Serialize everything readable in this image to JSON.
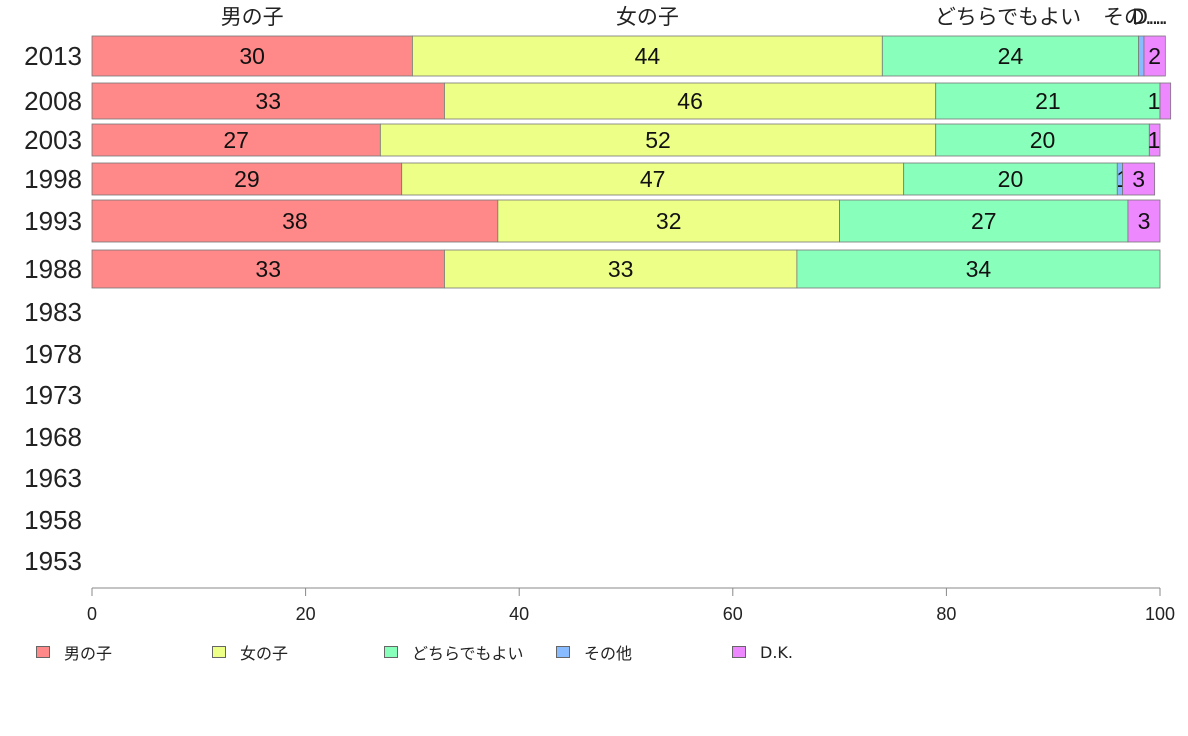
{
  "chart_data": {
    "type": "bar",
    "orientation": "horizontal",
    "stacked": true,
    "categories": [
      "2013",
      "2008",
      "2003",
      "1998",
      "1993",
      "1988",
      "1983",
      "1978",
      "1973",
      "1968",
      "1963",
      "1958",
      "1953"
    ],
    "series": [
      {
        "name": "男の子",
        "color": "#ff8888",
        "values": [
          30,
          33,
          27,
          29,
          38,
          33,
          null,
          null,
          null,
          null,
          null,
          null,
          null
        ]
      },
      {
        "name": "女の子",
        "color": "#eeff88",
        "values": [
          44,
          46,
          52,
          47,
          32,
          33,
          null,
          null,
          null,
          null,
          null,
          null,
          null
        ]
      },
      {
        "name": "どちらでもよい",
        "color": "#88ffbb",
        "values": [
          24,
          21,
          20,
          20,
          27,
          34,
          null,
          null,
          null,
          null,
          null,
          null,
          null
        ]
      },
      {
        "name": "その他",
        "color": "#88bbff",
        "values": [
          0.5,
          0,
          0,
          0.5,
          0,
          0,
          null,
          null,
          null,
          null,
          null,
          null,
          null
        ]
      },
      {
        "name": "D.K.",
        "color": "#ee88ff",
        "values": [
          2,
          1,
          1,
          3,
          3,
          0,
          null,
          null,
          null,
          null,
          null,
          null,
          null
        ]
      }
    ],
    "data_labels": [
      [
        "30",
        "44",
        "24",
        "",
        "2"
      ],
      [
        "33",
        "46",
        "21",
        "",
        "1"
      ],
      [
        "27",
        "52",
        "20",
        "",
        "1"
      ],
      [
        "29",
        "47",
        "20",
        "1",
        "3"
      ],
      [
        "38",
        "32",
        "27",
        "",
        "3"
      ],
      [
        "33",
        "33",
        "34",
        "",
        ""
      ]
    ],
    "top_labels": [
      "男の子",
      "女の子",
      "どちらでもよい",
      "その...",
      "D..."
    ],
    "xlim": [
      0,
      100
    ],
    "xticks": [
      "0",
      "20",
      "40",
      "60",
      "80",
      "100"
    ],
    "legend_position": "bottom",
    "grid": false
  }
}
